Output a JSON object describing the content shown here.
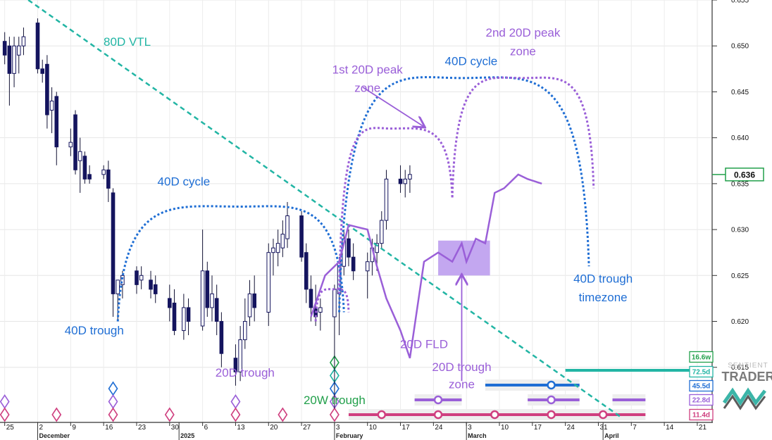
{
  "chart_data": {
    "type": "candlestick",
    "y_range": [
      0.609,
      0.655
    ],
    "x_range": [
      "2024-11-24",
      "2025-04-24"
    ],
    "price_ticks": [
      "0.655",
      "0.650",
      "0.645",
      "0.640",
      "0.635",
      "0.630",
      "0.625",
      "0.620",
      "0.615"
    ],
    "current_price": "0.636",
    "date_ticks": [
      {
        "date": "2024-11-25",
        "label": "25"
      },
      {
        "date": "2024-12-02",
        "label": "2"
      },
      {
        "date": "2024-12-09",
        "label": "9"
      },
      {
        "date": "2024-12-16",
        "label": "16"
      },
      {
        "date": "2024-12-23",
        "label": "23"
      },
      {
        "date": "2024-12-30",
        "label": "30"
      },
      {
        "date": "2025-01-06",
        "label": "6"
      },
      {
        "date": "2025-01-13",
        "label": "13"
      },
      {
        "date": "2025-01-20",
        "label": "20"
      },
      {
        "date": "2025-01-27",
        "label": "27"
      },
      {
        "date": "2025-02-03",
        "label": "3"
      },
      {
        "date": "2025-02-10",
        "label": "10"
      },
      {
        "date": "2025-02-17",
        "label": "17"
      },
      {
        "date": "2025-02-24",
        "label": "24"
      },
      {
        "date": "2025-03-03",
        "label": "3"
      },
      {
        "date": "2025-03-10",
        "label": "10"
      },
      {
        "date": "2025-03-17",
        "label": "17"
      },
      {
        "date": "2025-03-24",
        "label": "24"
      },
      {
        "date": "2025-03-31",
        "label": "31"
      },
      {
        "date": "2025-04-07",
        "label": "7"
      },
      {
        "date": "2025-04-14",
        "label": "14"
      },
      {
        "date": "2025-04-21",
        "label": "21"
      }
    ],
    "period_labels": [
      {
        "date": "2024-12-02",
        "label": "December"
      },
      {
        "date": "2025-01-01",
        "label": "2025"
      },
      {
        "date": "2025-02-03",
        "label": "February"
      },
      {
        "date": "2025-03-03",
        "label": "March"
      },
      {
        "date": "2025-04-01",
        "label": "April"
      }
    ],
    "candles": [
      {
        "d": "2024-11-25",
        "o": 0.6505,
        "h": 0.6515,
        "l": 0.648,
        "c": 0.649
      },
      {
        "d": "2024-11-26",
        "o": 0.65,
        "h": 0.651,
        "l": 0.6435,
        "c": 0.647
      },
      {
        "d": "2024-11-27",
        "o": 0.647,
        "h": 0.651,
        "l": 0.6455,
        "c": 0.65
      },
      {
        "d": "2024-11-28",
        "o": 0.649,
        "h": 0.651,
        "l": 0.647,
        "c": 0.65
      },
      {
        "d": "2024-11-29",
        "o": 0.65,
        "h": 0.652,
        "l": 0.649,
        "c": 0.651
      },
      {
        "d": "2024-12-02",
        "o": 0.6525,
        "h": 0.653,
        "l": 0.647,
        "c": 0.6475
      },
      {
        "d": "2024-12-03",
        "o": 0.6475,
        "h": 0.6485,
        "l": 0.646,
        "c": 0.647
      },
      {
        "d": "2024-12-04",
        "o": 0.648,
        "h": 0.649,
        "l": 0.641,
        "c": 0.6425
      },
      {
        "d": "2024-12-05",
        "o": 0.643,
        "h": 0.6455,
        "l": 0.6405,
        "c": 0.644
      },
      {
        "d": "2024-12-06",
        "o": 0.6445,
        "h": 0.645,
        "l": 0.637,
        "c": 0.639
      },
      {
        "d": "2024-12-09",
        "o": 0.639,
        "h": 0.641,
        "l": 0.638,
        "c": 0.6395
      },
      {
        "d": "2024-12-10",
        "o": 0.6425,
        "h": 0.643,
        "l": 0.636,
        "c": 0.6365
      },
      {
        "d": "2024-12-11",
        "o": 0.6375,
        "h": 0.64,
        "l": 0.634,
        "c": 0.6385
      },
      {
        "d": "2024-12-12",
        "o": 0.638,
        "h": 0.6385,
        "l": 0.635,
        "c": 0.6355
      },
      {
        "d": "2024-12-13",
        "o": 0.636,
        "h": 0.637,
        "l": 0.635,
        "c": 0.6355
      },
      {
        "d": "2024-12-16",
        "o": 0.636,
        "h": 0.637,
        "l": 0.6355,
        "c": 0.6365
      },
      {
        "d": "2024-12-17",
        "o": 0.6365,
        "h": 0.6375,
        "l": 0.633,
        "c": 0.6345
      },
      {
        "d": "2024-12-18",
        "o": 0.634,
        "h": 0.6345,
        "l": 0.6205,
        "c": 0.623
      },
      {
        "d": "2024-12-19",
        "o": 0.623,
        "h": 0.6245,
        "l": 0.62,
        "c": 0.6245
      },
      {
        "d": "2024-12-20",
        "o": 0.624,
        "h": 0.6255,
        "l": 0.6225,
        "c": 0.625
      },
      {
        "d": "2024-12-23",
        "o": 0.6255,
        "h": 0.626,
        "l": 0.623,
        "c": 0.624
      },
      {
        "d": "2024-12-24",
        "o": 0.6245,
        "h": 0.626,
        "l": 0.6235,
        "c": 0.625
      },
      {
        "d": "2024-12-26",
        "o": 0.6245,
        "h": 0.6255,
        "l": 0.6225,
        "c": 0.6235
      },
      {
        "d": "2024-12-27",
        "o": 0.624,
        "h": 0.625,
        "l": 0.622,
        "c": 0.623
      },
      {
        "d": "2024-12-30",
        "o": 0.6225,
        "h": 0.624,
        "l": 0.62,
        "c": 0.6215
      },
      {
        "d": "2024-12-31",
        "o": 0.622,
        "h": 0.6235,
        "l": 0.6185,
        "c": 0.619
      },
      {
        "d": "2025-01-02",
        "o": 0.619,
        "h": 0.623,
        "l": 0.618,
        "c": 0.6215
      },
      {
        "d": "2025-01-03",
        "o": 0.6215,
        "h": 0.6225,
        "l": 0.6185,
        "c": 0.62
      },
      {
        "d": "2025-01-06",
        "o": 0.6195,
        "h": 0.63,
        "l": 0.619,
        "c": 0.6255
      },
      {
        "d": "2025-01-07",
        "o": 0.6255,
        "h": 0.6265,
        "l": 0.6205,
        "c": 0.6215
      },
      {
        "d": "2025-01-08",
        "o": 0.6215,
        "h": 0.625,
        "l": 0.62,
        "c": 0.623
      },
      {
        "d": "2025-01-09",
        "o": 0.6225,
        "h": 0.624,
        "l": 0.6185,
        "c": 0.62
      },
      {
        "d": "2025-01-10",
        "o": 0.62,
        "h": 0.621,
        "l": 0.615,
        "c": 0.6165
      },
      {
        "d": "2025-01-13",
        "o": 0.616,
        "h": 0.6175,
        "l": 0.613,
        "c": 0.6145
      },
      {
        "d": "2025-01-14",
        "o": 0.6145,
        "h": 0.6195,
        "l": 0.6135,
        "c": 0.618
      },
      {
        "d": "2025-01-15",
        "o": 0.618,
        "h": 0.6225,
        "l": 0.617,
        "c": 0.62
      },
      {
        "d": "2025-01-16",
        "o": 0.6205,
        "h": 0.6245,
        "l": 0.6195,
        "c": 0.623
      },
      {
        "d": "2025-01-17",
        "o": 0.623,
        "h": 0.625,
        "l": 0.62,
        "c": 0.6215
      },
      {
        "d": "2025-01-20",
        "o": 0.621,
        "h": 0.6285,
        "l": 0.6195,
        "c": 0.6275
      },
      {
        "d": "2025-01-21",
        "o": 0.6275,
        "h": 0.629,
        "l": 0.625,
        "c": 0.628
      },
      {
        "d": "2025-01-22",
        "o": 0.6275,
        "h": 0.63,
        "l": 0.626,
        "c": 0.6285
      },
      {
        "d": "2025-01-23",
        "o": 0.628,
        "h": 0.631,
        "l": 0.627,
        "c": 0.6295
      },
      {
        "d": "2025-01-24",
        "o": 0.629,
        "h": 0.633,
        "l": 0.628,
        "c": 0.6315
      },
      {
        "d": "2025-01-27",
        "o": 0.6315,
        "h": 0.632,
        "l": 0.6265,
        "c": 0.627
      },
      {
        "d": "2025-01-28",
        "o": 0.6275,
        "h": 0.6285,
        "l": 0.622,
        "c": 0.6235
      },
      {
        "d": "2025-01-29",
        "o": 0.6235,
        "h": 0.625,
        "l": 0.62,
        "c": 0.6215
      },
      {
        "d": "2025-01-30",
        "o": 0.6215,
        "h": 0.624,
        "l": 0.6195,
        "c": 0.6205
      },
      {
        "d": "2025-01-31",
        "o": 0.621,
        "h": 0.6225,
        "l": 0.619,
        "c": 0.6215
      },
      {
        "d": "2025-02-03",
        "o": 0.6205,
        "h": 0.624,
        "l": 0.6105,
        "c": 0.6235
      },
      {
        "d": "2025-02-04",
        "o": 0.623,
        "h": 0.627,
        "l": 0.6185,
        "c": 0.6265
      },
      {
        "d": "2025-02-05",
        "o": 0.626,
        "h": 0.63,
        "l": 0.625,
        "c": 0.629
      },
      {
        "d": "2025-02-06",
        "o": 0.629,
        "h": 0.63,
        "l": 0.626,
        "c": 0.627
      },
      {
        "d": "2025-02-07",
        "o": 0.627,
        "h": 0.6285,
        "l": 0.6245,
        "c": 0.6255
      },
      {
        "d": "2025-02-10",
        "o": 0.6255,
        "h": 0.6275,
        "l": 0.6225,
        "c": 0.6265
      },
      {
        "d": "2025-02-11",
        "o": 0.6265,
        "h": 0.629,
        "l": 0.625,
        "c": 0.628
      },
      {
        "d": "2025-02-12",
        "o": 0.6275,
        "h": 0.6295,
        "l": 0.6255,
        "c": 0.6285
      },
      {
        "d": "2025-02-13",
        "o": 0.6285,
        "h": 0.632,
        "l": 0.628,
        "c": 0.631
      },
      {
        "d": "2025-02-14",
        "o": 0.631,
        "h": 0.6365,
        "l": 0.63,
        "c": 0.6355
      },
      {
        "d": "2025-02-17",
        "o": 0.6355,
        "h": 0.637,
        "l": 0.634,
        "c": 0.635
      },
      {
        "d": "2025-02-18",
        "o": 0.635,
        "h": 0.6365,
        "l": 0.6335,
        "c": 0.6355
      },
      {
        "d": "2025-02-19",
        "o": 0.6355,
        "h": 0.637,
        "l": 0.634,
        "c": 0.636
      }
    ],
    "overlays": {
      "vtl": {
        "label": "80D VTL",
        "color": "#22b5a4",
        "points": [
          [
            "2024-11-30",
            0.655
          ],
          [
            "2025-04-05",
            0.6095
          ]
        ]
      },
      "cycle_40d_1": {
        "label": "40D cycle",
        "color": "#1f6ed4",
        "start": [
          "2024-12-19",
          0.62
        ],
        "peak": [
          "2025-01-14",
          0.6325
        ],
        "end": [
          "2025-02-05",
          0.621
        ]
      },
      "cycle_40d_2": {
        "label": "40D cycle",
        "color": "#1f6ed4",
        "start": [
          "2025-02-04",
          0.621
        ],
        "peak": [
          "2025-03-02",
          0.6465
        ],
        "end": [
          "2025-03-29",
          0.626
        ]
      },
      "cycle_20d_1": {
        "color": "#9a5fd8",
        "start": [
          "2025-02-04",
          0.623
        ],
        "peak": [
          "2025-02-15",
          0.641
        ],
        "end": [
          "2025-02-28",
          0.6335
        ]
      },
      "cycle_20d_2": {
        "color": "#9a5fd8",
        "start": [
          "2025-02-28",
          0.6335
        ],
        "peak": [
          "2025-03-15",
          0.6465
        ],
        "end": [
          "2025-03-30",
          0.6345
        ]
      },
      "cycle_20d_0": {
        "color": "#9a5fd8",
        "start": [
          "2025-01-30",
          0.62
        ],
        "peak": [
          "2025-02-03",
          0.6235
        ],
        "end": [
          "2025-02-06",
          0.621
        ]
      },
      "fld_20d": {
        "label": "20D FLD",
        "color": "#9a5fd8",
        "points": [
          [
            "2025-01-29",
            0.6205
          ],
          [
            "2025-02-01",
            0.625
          ],
          [
            "2025-02-04",
            0.6265
          ],
          [
            "2025-02-06",
            0.6305
          ],
          [
            "2025-02-10",
            0.63
          ],
          [
            "2025-02-12",
            0.626
          ],
          [
            "2025-02-14",
            0.6225
          ],
          [
            "2025-02-17",
            0.619
          ],
          [
            "2025-02-19",
            0.616
          ],
          [
            "2025-02-22",
            0.6265
          ],
          [
            "2025-02-25",
            0.6275
          ],
          [
            "2025-02-28",
            0.6265
          ],
          [
            "2025-03-02",
            0.6285
          ],
          [
            "2025-03-03",
            0.6265
          ],
          [
            "2025-03-05",
            0.629
          ],
          [
            "2025-03-07",
            0.6285
          ],
          [
            "2025-03-09",
            0.634
          ],
          [
            "2025-03-11",
            0.6345
          ],
          [
            "2025-03-14",
            0.636
          ],
          [
            "2025-03-16",
            0.6355
          ],
          [
            "2025-03-19",
            0.635
          ]
        ]
      },
      "trough_zone_20d": {
        "color": "#c3a7f0",
        "x": [
          "2025-02-25",
          "2025-03-08"
        ],
        "y": [
          0.625,
          0.6288
        ]
      }
    },
    "annotations": [
      {
        "text": "80D VTL",
        "color": "#22b5a4",
        "at": [
          "2024-12-21",
          0.65
        ]
      },
      {
        "text": "40D cycle",
        "color": "#1f6ed4",
        "at": [
          "2025-01-02",
          0.6348
        ]
      },
      {
        "text": "40D cycle",
        "color": "#1f6ed4",
        "at": [
          "2025-03-04",
          0.6479
        ]
      },
      {
        "text": "1st 20D peak",
        "color": "#9a5fd8",
        "at": [
          "2025-02-10",
          0.647
        ]
      },
      {
        "text": "zone",
        "color": "#9a5fd8",
        "at": [
          "2025-02-10",
          0.645
        ]
      },
      {
        "text": "2nd 20D peak",
        "color": "#9a5fd8",
        "at": [
          "2025-03-15",
          0.651
        ]
      },
      {
        "text": "zone",
        "color": "#9a5fd8",
        "at": [
          "2025-03-15",
          0.649
        ]
      },
      {
        "text": "40D trough",
        "color": "#1f6ed4",
        "at": [
          "2024-12-14",
          0.6186
        ]
      },
      {
        "text": "20D trough",
        "color": "#9a5fd8",
        "at": [
          "2025-01-15",
          0.614
        ]
      },
      {
        "text": "20W trough",
        "color": "#22a04b",
        "at": [
          "2025-02-03",
          0.611
        ]
      },
      {
        "text": "20D FLD",
        "color": "#9a5fd8",
        "at": [
          "2025-02-22",
          0.6171
        ]
      },
      {
        "text": "20D trough",
        "color": "#9a5fd8",
        "at": [
          "2025-03-02",
          0.6146
        ]
      },
      {
        "text": "zone",
        "color": "#9a5fd8",
        "at": [
          "2025-03-02",
          0.6127
        ]
      },
      {
        "text": "40D trough",
        "color": "#1f6ed4",
        "at": [
          "2025-04-01",
          0.6242
        ]
      },
      {
        "text": "timezone",
        "color": "#1f6ed4",
        "at": [
          "2025-04-01",
          0.6222
        ]
      }
    ],
    "arrows": [
      {
        "color": "#9a5fd8",
        "from": [
          "2025-02-09",
          0.6455
        ],
        "to": [
          "2025-02-22",
          0.6412
        ]
      },
      {
        "color": "#9a5fd8",
        "from": [
          "2025-03-02",
          0.6135
        ],
        "to": [
          "2025-03-02",
          0.625
        ]
      }
    ],
    "cycle_lengths": [
      {
        "label": "16.6w",
        "color": "#22a04b",
        "bg": "#ffffff"
      },
      {
        "label": "72.5d",
        "color": "#22b5a4",
        "bg": "#ffffff"
      },
      {
        "label": "45.5d",
        "color": "#1f6ed4",
        "bg": "#ffffff"
      },
      {
        "label": "22.8d",
        "color": "#9a5fd8",
        "bg": "#ffffff"
      },
      {
        "label": "11.4d",
        "color": "#cf3f7f",
        "bg": "#ffffff"
      }
    ],
    "cycle_lines": [
      {
        "color": "#22b5a4",
        "from": "2025-03-24",
        "to": "2025-05-10",
        "row": 1
      },
      {
        "color": "#1f6ed4",
        "from": "2025-03-07",
        "to": "2025-03-27",
        "marker": "2025-03-21",
        "row": 2
      },
      {
        "color": "#9a5fd8",
        "from": "2025-02-20",
        "to": "2025-03-02",
        "marker": "2025-02-25",
        "row": 3
      },
      {
        "color": "#9a5fd8",
        "from": "2025-03-16",
        "to": "2025-03-27",
        "marker": "2025-03-21",
        "row": 3
      },
      {
        "color": "#9a5fd8",
        "from": "2025-04-03",
        "to": "2025-04-10",
        "row": 3
      },
      {
        "color": "#cf3f7f",
        "from": "2025-02-06",
        "to": "2025-04-10",
        "markers": [
          "2025-02-13",
          "2025-02-25",
          "2025-03-09",
          "2025-03-21",
          "2025-04-01"
        ],
        "row": 4
      }
    ],
    "diamonds": [
      {
        "d": "2024-11-25",
        "colors": [
          "#9a5fd8",
          "#cf3f7f"
        ]
      },
      {
        "d": "2024-12-06",
        "colors": [
          "#cf3f7f"
        ]
      },
      {
        "d": "2024-12-18",
        "colors": [
          "#1f6ed4",
          "#9a5fd8",
          "#cf3f7f"
        ]
      },
      {
        "d": "2024-12-30",
        "colors": [
          "#cf3f7f"
        ]
      },
      {
        "d": "2025-01-13",
        "colors": [
          "#9a5fd8",
          "#cf3f7f"
        ]
      },
      {
        "d": "2025-01-23",
        "colors": [
          "#cf3f7f"
        ]
      },
      {
        "d": "2025-02-03",
        "colors": [
          "#22a04b",
          "#22b5a4",
          "#1f6ed4",
          "#9a5fd8",
          "#cf3f7f"
        ]
      }
    ],
    "logo": {
      "line1": "SENTIENT",
      "line2": "TRADER"
    }
  }
}
